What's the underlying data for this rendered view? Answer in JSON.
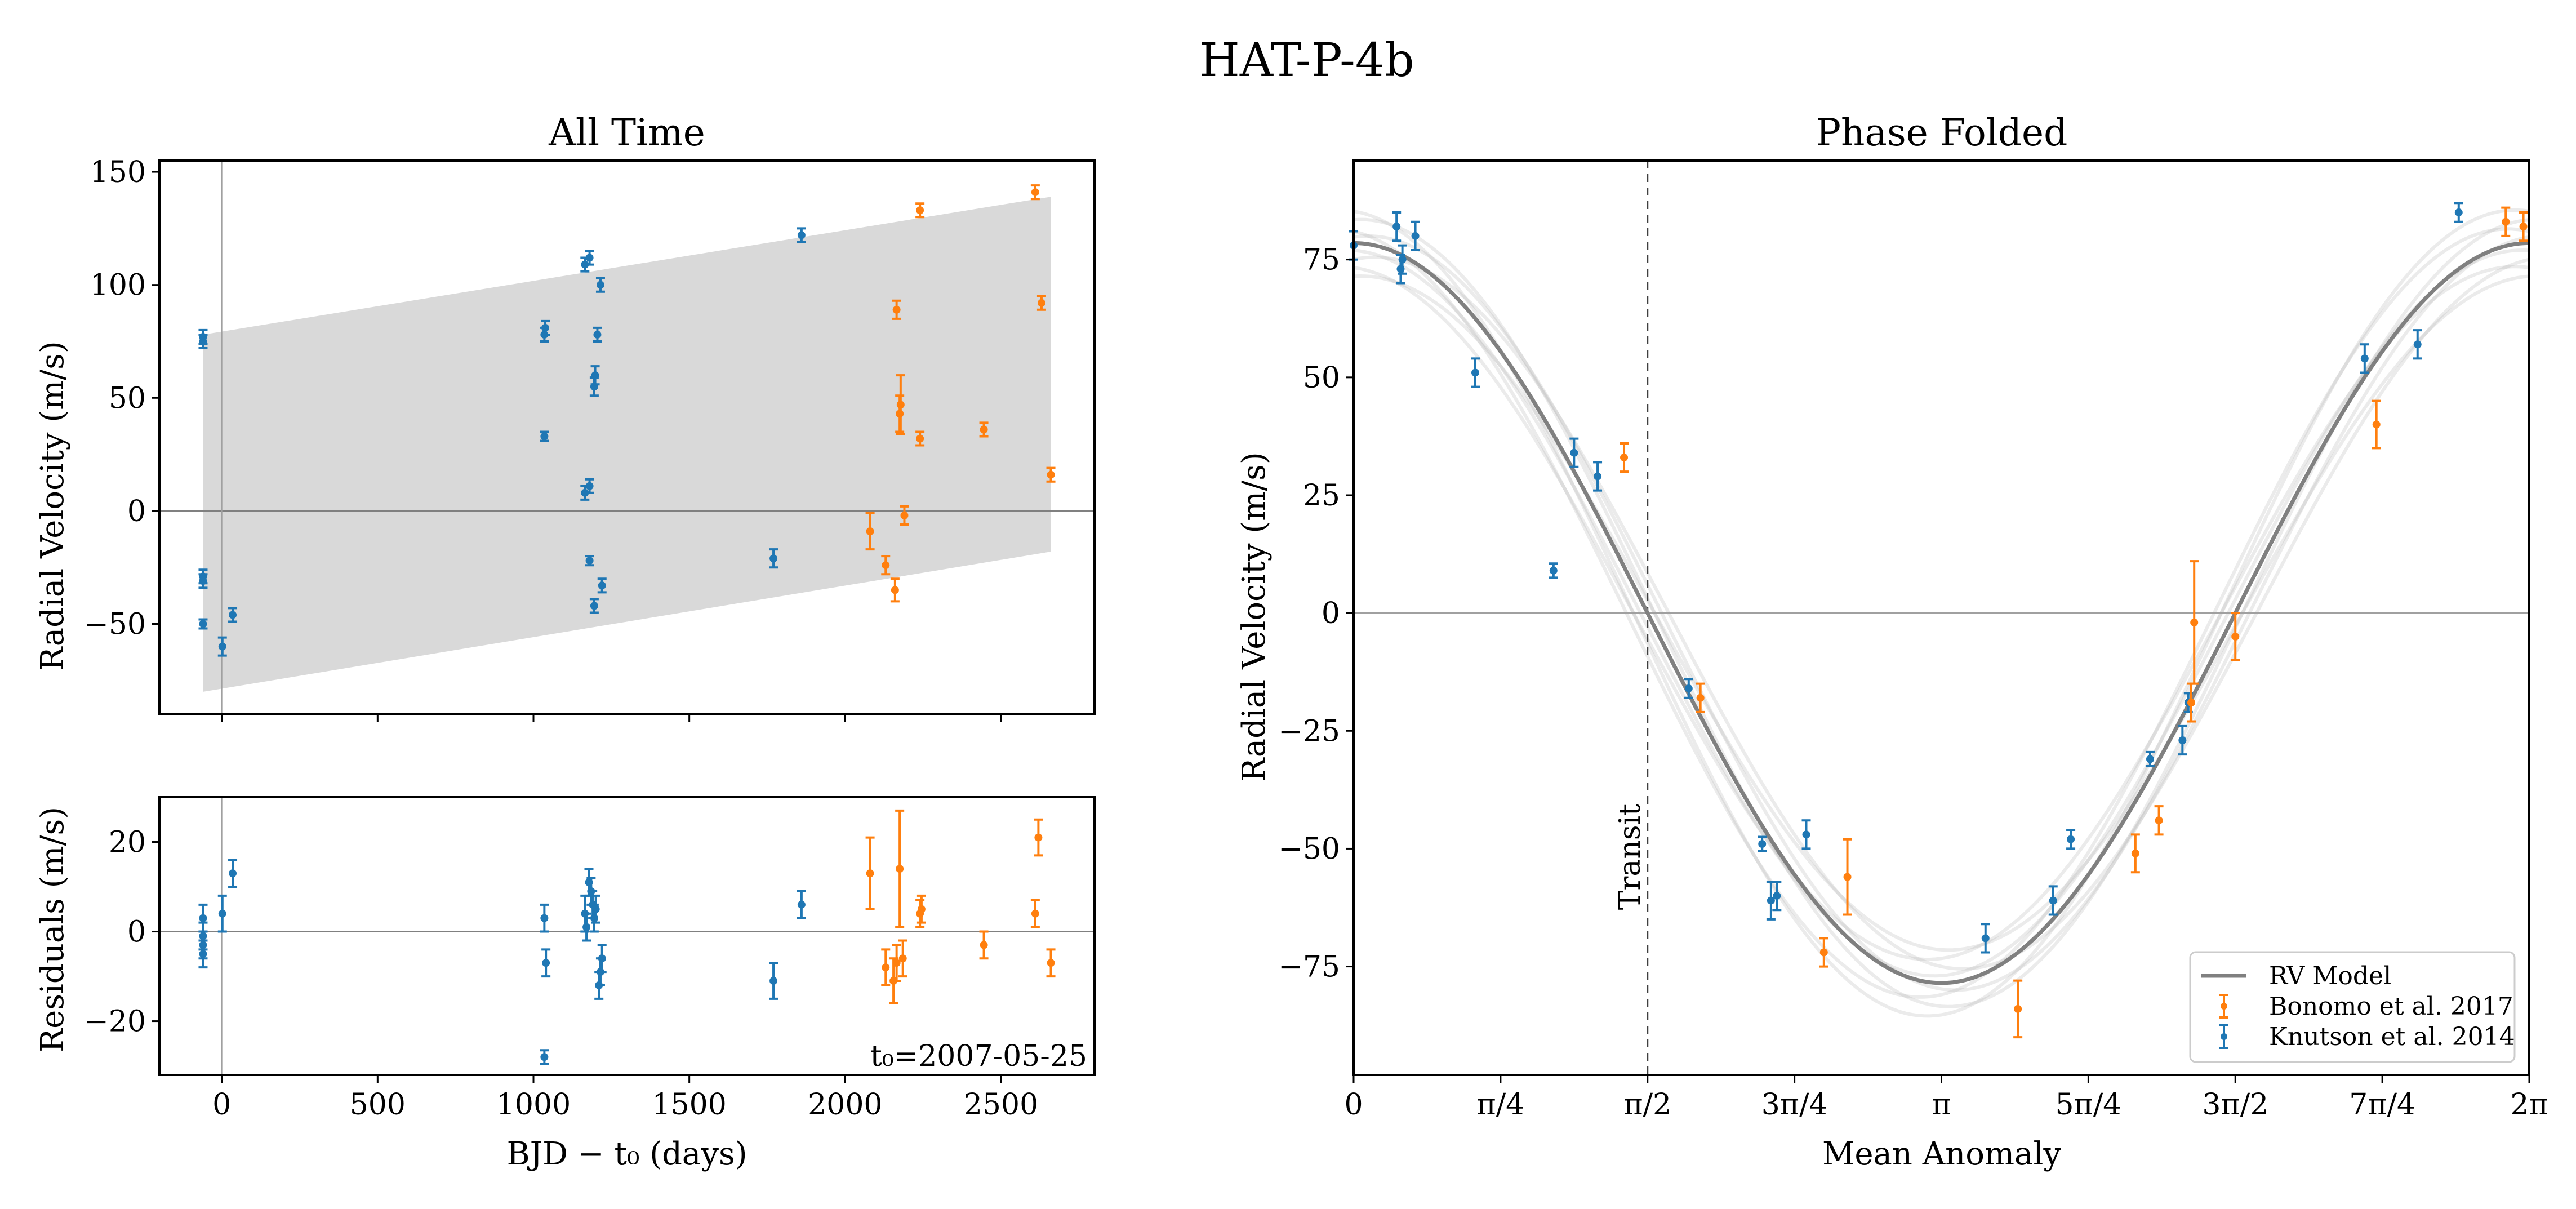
{
  "figure": {
    "title": "HAT-P-4b"
  },
  "colors": {
    "knutson": "#1f77b4",
    "bonomo": "#ff7f0e",
    "model": "#808080",
    "band": "#d9d9d9"
  },
  "chart_data": [
    {
      "id": "all_time",
      "type": "scatter",
      "title": "All Time",
      "xlabel": "",
      "ylabel": "Radial Velocity (m/s)",
      "xlim": [
        -200,
        2800
      ],
      "ylim": [
        -90,
        155
      ],
      "xticks": [
        0,
        500,
        1000,
        1500,
        2000,
        2500
      ],
      "yticks": [
        -50,
        0,
        50,
        100,
        150
      ],
      "band": {
        "x": [
          -60,
          2660
        ],
        "lower": [
          -80,
          -18
        ],
        "upper": [
          78,
          139
        ]
      },
      "series": [
        {
          "name": "Knutson et al. 2014",
          "color": "#1f77b4",
          "points": [
            {
              "x": -60,
              "y": 75,
              "err": 3
            },
            {
              "x": -60,
              "y": 77,
              "err": 3
            },
            {
              "x": -60,
              "y": -29,
              "err": 3
            },
            {
              "x": -60,
              "y": -31,
              "err": 3
            },
            {
              "x": -60,
              "y": -50,
              "err": 2
            },
            {
              "x": 2,
              "y": -60,
              "err": 4
            },
            {
              "x": 35,
              "y": -46,
              "err": 3
            },
            {
              "x": 1035,
              "y": 78,
              "err": 3
            },
            {
              "x": 1038,
              "y": 81,
              "err": 3
            },
            {
              "x": 1035,
              "y": 33,
              "err": 2
            },
            {
              "x": 1165,
              "y": 109,
              "err": 3
            },
            {
              "x": 1180,
              "y": 112,
              "err": 3
            },
            {
              "x": 1215,
              "y": 100,
              "err": 3
            },
            {
              "x": 1205,
              "y": 78,
              "err": 3
            },
            {
              "x": 1195,
              "y": 55,
              "err": 4
            },
            {
              "x": 1198,
              "y": 60,
              "err": 4
            },
            {
              "x": 1165,
              "y": 8,
              "err": 3
            },
            {
              "x": 1180,
              "y": 11,
              "err": 3
            },
            {
              "x": 1180,
              "y": -22,
              "err": 2
            },
            {
              "x": 1195,
              "y": -42,
              "err": 3
            },
            {
              "x": 1220,
              "y": -33,
              "err": 3
            },
            {
              "x": 1770,
              "y": -21,
              "err": 4
            },
            {
              "x": 1860,
              "y": 122,
              "err": 3
            }
          ]
        },
        {
          "name": "Bonomo et al. 2017",
          "color": "#ff7f0e",
          "points": [
            {
              "x": 2080,
              "y": -9,
              "err": 8
            },
            {
              "x": 2130,
              "y": -24,
              "err": 4
            },
            {
              "x": 2160,
              "y": -35,
              "err": 5
            },
            {
              "x": 2165,
              "y": 89,
              "err": 4
            },
            {
              "x": 2175,
              "y": 43,
              "err": 8
            },
            {
              "x": 2178,
              "y": 47,
              "err": 13
            },
            {
              "x": 2190,
              "y": -2,
              "err": 4
            },
            {
              "x": 2240,
              "y": 133,
              "err": 3
            },
            {
              "x": 2240,
              "y": 32,
              "err": 3
            },
            {
              "x": 2445,
              "y": 36,
              "err": 3
            },
            {
              "x": 2610,
              "y": 141,
              "err": 3
            },
            {
              "x": 2630,
              "y": 92,
              "err": 3
            },
            {
              "x": 2660,
              "y": 16,
              "err": 3
            }
          ]
        }
      ]
    },
    {
      "id": "residuals",
      "type": "scatter",
      "title": "",
      "xlabel": "BJD − t₀ (days)",
      "ylabel": "Residuals (m/s)",
      "xlim": [
        -200,
        2800
      ],
      "ylim": [
        -32,
        30
      ],
      "xticks": [
        0,
        500,
        1000,
        1500,
        2000,
        2500
      ],
      "yticks": [
        -20,
        0,
        20
      ],
      "annotation": "t₀=2007-05-25",
      "series": [
        {
          "name": "Knutson et al. 2014",
          "color": "#1f77b4",
          "points": [
            {
              "x": -60,
              "y": 3,
              "err": 3
            },
            {
              "x": -60,
              "y": -1,
              "err": 3
            },
            {
              "x": -60,
              "y": -3,
              "err": 3
            },
            {
              "x": -60,
              "y": -5,
              "err": 3
            },
            {
              "x": 2,
              "y": 4,
              "err": 4
            },
            {
              "x": 35,
              "y": 13,
              "err": 3
            },
            {
              "x": 1035,
              "y": 3,
              "err": 3
            },
            {
              "x": 1040,
              "y": -7,
              "err": 3
            },
            {
              "x": 1035,
              "y": -28,
              "err": 1.5
            },
            {
              "x": 1165,
              "y": 4,
              "err": 4
            },
            {
              "x": 1170,
              "y": 1,
              "err": 3
            },
            {
              "x": 1178,
              "y": 11,
              "err": 3
            },
            {
              "x": 1185,
              "y": 9,
              "err": 3
            },
            {
              "x": 1190,
              "y": 6,
              "err": 3
            },
            {
              "x": 1195,
              "y": 3,
              "err": 3
            },
            {
              "x": 1200,
              "y": 5,
              "err": 3
            },
            {
              "x": 1210,
              "y": -12,
              "err": 3
            },
            {
              "x": 1220,
              "y": -6,
              "err": 3
            },
            {
              "x": 1215,
              "y": -9,
              "err": 3
            },
            {
              "x": 1770,
              "y": -11,
              "err": 4
            },
            {
              "x": 1860,
              "y": 6,
              "err": 3
            }
          ]
        },
        {
          "name": "Bonomo et al. 2017",
          "color": "#ff7f0e",
          "points": [
            {
              "x": 2080,
              "y": 13,
              "err": 8
            },
            {
              "x": 2130,
              "y": -8,
              "err": 4
            },
            {
              "x": 2155,
              "y": -11,
              "err": 5
            },
            {
              "x": 2165,
              "y": -7,
              "err": 4
            },
            {
              "x": 2175,
              "y": 14,
              "err": 13
            },
            {
              "x": 2185,
              "y": -6,
              "err": 4
            },
            {
              "x": 2240,
              "y": 4,
              "err": 3
            },
            {
              "x": 2245,
              "y": 5,
              "err": 3
            },
            {
              "x": 2445,
              "y": -3,
              "err": 3
            },
            {
              "x": 2610,
              "y": 4,
              "err": 3
            },
            {
              "x": 2620,
              "y": 21,
              "err": 4
            },
            {
              "x": 2660,
              "y": -7,
              "err": 3
            }
          ]
        }
      ]
    },
    {
      "id": "phase_folded",
      "type": "scatter",
      "title": "Phase Folded",
      "xlabel": "Mean Anomaly",
      "ylabel": "Radial Velocity (m/s)",
      "xlim_over_pi": [
        0,
        2
      ],
      "ylim": [
        -98,
        96
      ],
      "xticks_over_pi": [
        0,
        0.25,
        0.5,
        0.75,
        1,
        1.25,
        1.5,
        1.75,
        2
      ],
      "xticklabels": [
        "0",
        "π/4",
        "π/2",
        "3π/4",
        "π",
        "5π/4",
        "3π/2",
        "7π/4",
        "2π"
      ],
      "yticks": [
        -75,
        -50,
        -25,
        0,
        25,
        50,
        75
      ],
      "transit_over_pi": 0.5,
      "transit_label": "Transit",
      "model": {
        "name": "RV Model",
        "amplitude": 78.5
      },
      "legend": {
        "location": "lower right",
        "entries": [
          "RV Model",
          "Bonomo et al. 2017",
          "Knutson et al. 2014"
        ]
      },
      "series": [
        {
          "name": "Knutson et al. 2014",
          "color": "#1f77b4",
          "points": [
            {
              "x_over_pi": 0.0,
              "y": 78,
              "err": 3
            },
            {
              "x_over_pi": 0.073,
              "y": 82,
              "err": 3
            },
            {
              "x_over_pi": 0.08,
              "y": 73,
              "err": 3
            },
            {
              "x_over_pi": 0.083,
              "y": 75,
              "err": 3
            },
            {
              "x_over_pi": 0.105,
              "y": 80,
              "err": 3
            },
            {
              "x_over_pi": 0.207,
              "y": 51,
              "err": 3
            },
            {
              "x_over_pi": 0.34,
              "y": 9,
              "err": 1.5
            },
            {
              "x_over_pi": 0.375,
              "y": 34,
              "err": 3
            },
            {
              "x_over_pi": 0.415,
              "y": 29,
              "err": 3
            },
            {
              "x_over_pi": 0.57,
              "y": -16,
              "err": 2
            },
            {
              "x_over_pi": 0.695,
              "y": -49,
              "err": 1.5
            },
            {
              "x_over_pi": 0.71,
              "y": -61,
              "err": 4
            },
            {
              "x_over_pi": 0.72,
              "y": -60,
              "err": 3
            },
            {
              "x_over_pi": 0.77,
              "y": -47,
              "err": 3
            },
            {
              "x_over_pi": 1.075,
              "y": -69,
              "err": 3
            },
            {
              "x_over_pi": 1.19,
              "y": -61,
              "err": 3
            },
            {
              "x_over_pi": 1.22,
              "y": -48,
              "err": 2
            },
            {
              "x_over_pi": 1.355,
              "y": -31,
              "err": 1.5
            },
            {
              "x_over_pi": 1.41,
              "y": -27,
              "err": 3
            },
            {
              "x_over_pi": 1.42,
              "y": -19,
              "err": 2
            },
            {
              "x_over_pi": 1.72,
              "y": 54,
              "err": 3
            },
            {
              "x_over_pi": 1.81,
              "y": 57,
              "err": 3
            },
            {
              "x_over_pi": 1.88,
              "y": 85,
              "err": 2
            }
          ]
        },
        {
          "name": "Bonomo et al. 2017",
          "color": "#ff7f0e",
          "points": [
            {
              "x_over_pi": 0.46,
              "y": 33,
              "err": 3
            },
            {
              "x_over_pi": 0.59,
              "y": -18,
              "err": 3
            },
            {
              "x_over_pi": 0.8,
              "y": -72,
              "err": 3
            },
            {
              "x_over_pi": 0.84,
              "y": -56,
              "err": 8
            },
            {
              "x_over_pi": 1.13,
              "y": -84,
              "err": 6
            },
            {
              "x_over_pi": 1.33,
              "y": -51,
              "err": 4
            },
            {
              "x_over_pi": 1.37,
              "y": -44,
              "err": 3
            },
            {
              "x_over_pi": 1.43,
              "y": -2,
              "err": 13
            },
            {
              "x_over_pi": 1.425,
              "y": -19,
              "err": 4
            },
            {
              "x_over_pi": 1.5,
              "y": -5,
              "err": 5
            },
            {
              "x_over_pi": 1.74,
              "y": 40,
              "err": 5
            },
            {
              "x_over_pi": 1.96,
              "y": 83,
              "err": 3
            },
            {
              "x_over_pi": 1.99,
              "y": 82,
              "err": 3
            }
          ]
        }
      ]
    }
  ]
}
